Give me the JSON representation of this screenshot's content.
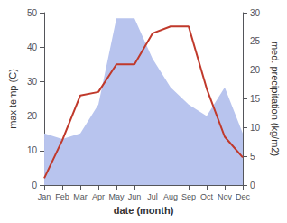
{
  "chart_data": {
    "type": "line",
    "xlabel": "date (month)",
    "ylabel": "max temp (C)",
    "y2label": "med. precipitation (kg/m2)",
    "categories": [
      "Jan",
      "Feb",
      "Mar",
      "Apr",
      "May",
      "Jun",
      "Jul",
      "Aug",
      "Sep",
      "Oct",
      "Nov",
      "Dec"
    ],
    "series": [
      {
        "type": "area",
        "axis": "y2",
        "color": "#b8c4ee",
        "values": [
          9,
          8,
          9,
          14,
          29,
          29,
          22,
          17,
          14,
          12,
          17,
          9
        ]
      },
      {
        "type": "line",
        "color": "#c0392b",
        "values": [
          2,
          13,
          26,
          27,
          35,
          35,
          44,
          46,
          46,
          28,
          14,
          8
        ]
      }
    ],
    "ylim": [
      0,
      50
    ],
    "yticks": [
      0,
      10,
      20,
      30,
      40,
      50
    ],
    "y2lim": [
      0,
      30
    ],
    "y2ticks": [
      0,
      5,
      10,
      15,
      20,
      25,
      30
    ],
    "grid": false
  }
}
